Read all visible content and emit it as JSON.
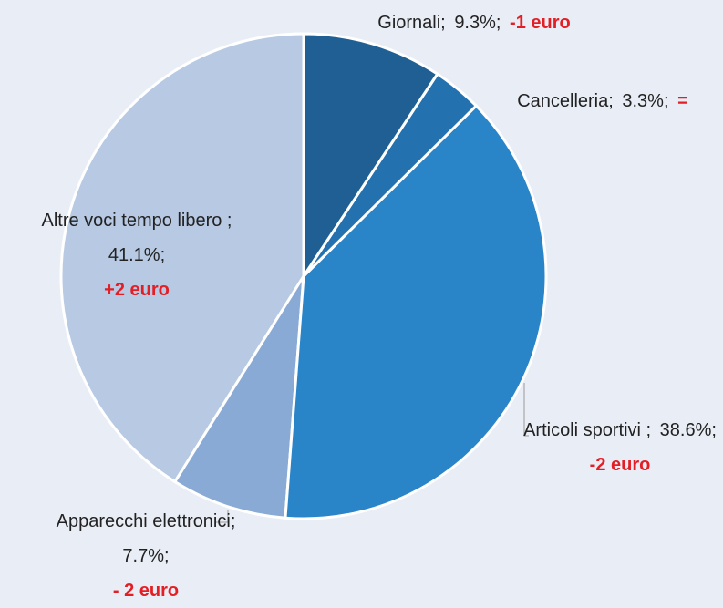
{
  "chart_data": {
    "type": "pie",
    "categories": [
      "Giornali;",
      "Cancelleria;",
      "Articoli sportivi ;",
      "Apparecchi elettronici;",
      "Altre voci tempo libero ;"
    ],
    "values": [
      9.3,
      3.3,
      38.6,
      7.7,
      41.1
    ],
    "value_labels": [
      "9.3%;",
      "3.3%;",
      "38.6%;",
      "7.7%;",
      "41.1%;"
    ],
    "annotations": [
      "-1 euro",
      "=",
      "-2 euro",
      "- 2 euro",
      "+2 euro"
    ],
    "colors": [
      "#1f5f94",
      "#2471b0",
      "#2a84c8",
      "#8aaad6",
      "#b7c9e3"
    ]
  }
}
